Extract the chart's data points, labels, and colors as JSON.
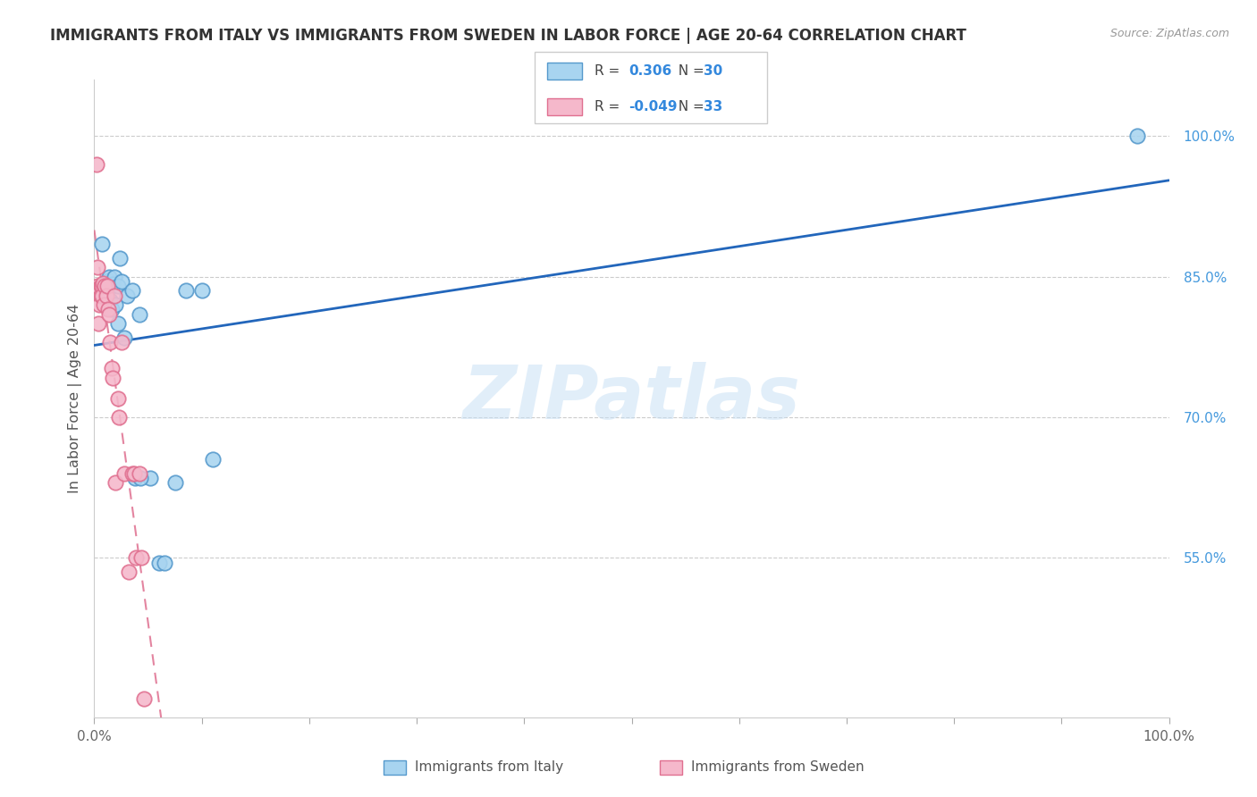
{
  "title": "IMMIGRANTS FROM ITALY VS IMMIGRANTS FROM SWEDEN IN LABOR FORCE | AGE 20-64 CORRELATION CHART",
  "source": "Source: ZipAtlas.com",
  "ylabel": "In Labor Force | Age 20-64",
  "xlim": [
    0.0,
    1.0
  ],
  "ylim": [
    0.38,
    1.06
  ],
  "x_tick_positions": [
    0.0,
    0.1,
    0.2,
    0.3,
    0.4,
    0.5,
    0.6,
    0.7,
    0.8,
    0.9,
    1.0
  ],
  "x_tick_labels": [
    "0.0%",
    "",
    "",
    "",
    "",
    "",
    "",
    "",
    "",
    "",
    "100.0%"
  ],
  "y_tick_right_positions": [
    0.55,
    0.7,
    0.85,
    1.0
  ],
  "y_tick_right_labels": [
    "55.0%",
    "70.0%",
    "85.0%",
    "100.0%"
  ],
  "R_italy": 0.306,
  "N_italy": 30,
  "R_sweden": -0.049,
  "N_sweden": 33,
  "color_italy_fill": "#a8d4f0",
  "color_italy_edge": "#5599cc",
  "color_sweden_fill": "#f5b8cb",
  "color_sweden_edge": "#e07090",
  "line_color_italy": "#2266bb",
  "line_color_sweden": "#dd6688",
  "legend_label_italy": "Immigrants from Italy",
  "legend_label_sweden": "Immigrants from Sweden",
  "watermark_text": "ZIPatlas",
  "italy_x": [
    0.003,
    0.007,
    0.009,
    0.01,
    0.012,
    0.013,
    0.014,
    0.015,
    0.016,
    0.017,
    0.019,
    0.02,
    0.022,
    0.022,
    0.024,
    0.025,
    0.028,
    0.03,
    0.042,
    0.052,
    0.06,
    0.065,
    0.075,
    0.085,
    0.1,
    0.11,
    0.97,
    0.035,
    0.038,
    0.043
  ],
  "italy_y": [
    0.835,
    0.885,
    0.84,
    0.843,
    0.835,
    0.846,
    0.85,
    0.825,
    0.815,
    0.842,
    0.85,
    0.82,
    0.84,
    0.8,
    0.87,
    0.845,
    0.785,
    0.83,
    0.81,
    0.635,
    0.545,
    0.545,
    0.63,
    0.835,
    0.835,
    0.655,
    1.0,
    0.835,
    0.635,
    0.635
  ],
  "sweden_x": [
    0.002,
    0.003,
    0.003,
    0.004,
    0.005,
    0.005,
    0.006,
    0.006,
    0.007,
    0.007,
    0.008,
    0.009,
    0.01,
    0.011,
    0.012,
    0.013,
    0.014,
    0.015,
    0.016,
    0.017,
    0.019,
    0.02,
    0.022,
    0.023,
    0.025,
    0.028,
    0.032,
    0.035,
    0.037,
    0.039,
    0.042,
    0.044,
    0.046
  ],
  "sweden_y": [
    0.97,
    0.84,
    0.86,
    0.8,
    0.838,
    0.82,
    0.84,
    0.83,
    0.84,
    0.83,
    0.843,
    0.82,
    0.84,
    0.83,
    0.84,
    0.815,
    0.81,
    0.78,
    0.752,
    0.742,
    0.83,
    0.63,
    0.72,
    0.7,
    0.78,
    0.64,
    0.535,
    0.64,
    0.64,
    0.55,
    0.64,
    0.55,
    0.4
  ]
}
